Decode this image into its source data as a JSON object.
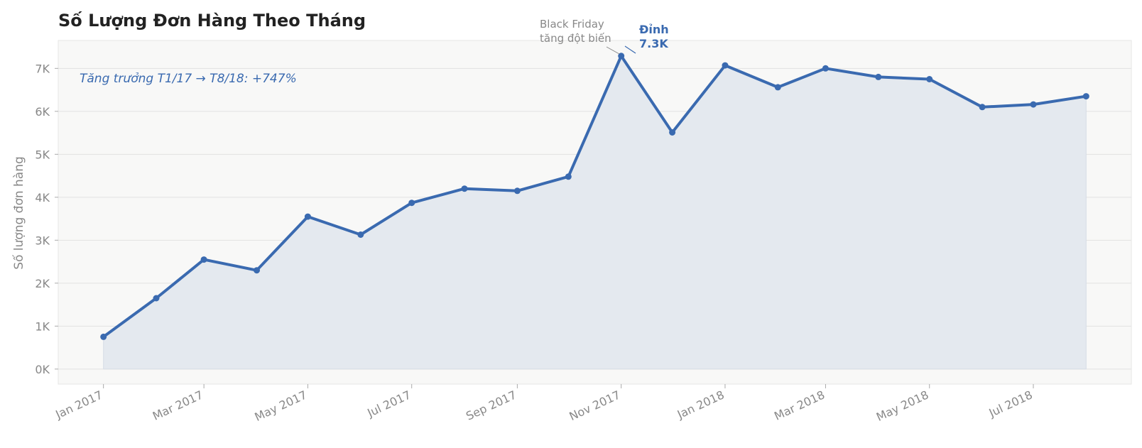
{
  "chart_data": {
    "type": "line",
    "title": "Số Lượng Đơn Hàng Theo Tháng",
    "xlabel": "",
    "ylabel": "Số lượng đơn hàng",
    "ylim": [
      -350,
      7650
    ],
    "y_ticks": [
      0,
      1000,
      2000,
      3000,
      4000,
      5000,
      6000,
      7000
    ],
    "y_tick_labels": [
      "0K",
      "1K",
      "2K",
      "3K",
      "4K",
      "5K",
      "6K",
      "7K"
    ],
    "x": [
      "2017-01",
      "2017-02",
      "2017-03",
      "2017-04",
      "2017-05",
      "2017-06",
      "2017-07",
      "2017-08",
      "2017-09",
      "2017-10",
      "2017-11",
      "2017-12",
      "2018-01",
      "2018-02",
      "2018-03",
      "2018-04",
      "2018-05",
      "2018-06",
      "2018-07",
      "2018-08"
    ],
    "x_ticks": [
      "2017-01",
      "2017-03",
      "2017-05",
      "2017-07",
      "2017-09",
      "2017-11",
      "2018-01",
      "2018-03",
      "2018-05",
      "2018-07"
    ],
    "x_tick_labels": [
      "Jan 2017",
      "Mar 2017",
      "May 2017",
      "Jul 2017",
      "Sep 2017",
      "Nov 2017",
      "Jan 2018",
      "Mar 2018",
      "May 2018",
      "Jul 2018"
    ],
    "series": [
      {
        "values": [
          750,
          1650,
          2550,
          2300,
          3550,
          3130,
          3870,
          4200,
          4150,
          4480,
          7290,
          5510,
          7070,
          6560,
          7000,
          6800,
          6750,
          6100,
          6160,
          6350
        ],
        "color": "#3a6ab0"
      }
    ],
    "annotations": {
      "growth": "Tăng trưởng T1/17 → T8/18: +747%",
      "event_line1": "Black Friday",
      "event_line2": "tăng đột biến",
      "peak_line1": "Đỉnh",
      "peak_line2": "7.3K"
    },
    "grid": true,
    "legend": "none",
    "fill_under_line": true
  },
  "colors": {
    "line": "#3a6ab0",
    "area_fill": "#e4e9ef",
    "plot_background": "#f8f8f7",
    "grid": "#e2e2e2",
    "title": "#222222",
    "tick_text": "#888888"
  }
}
